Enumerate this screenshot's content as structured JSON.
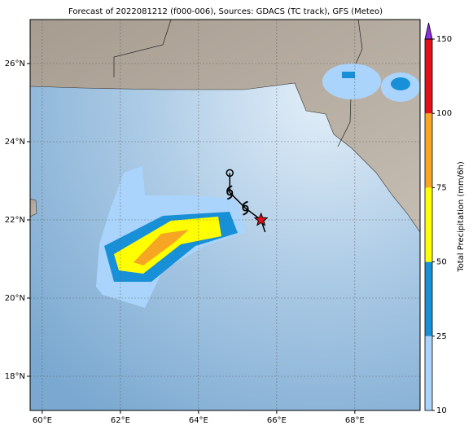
{
  "title": "Forecast of 2022081212 (f000-006), Sources: GDACS (TC track), GFS (Meteo)",
  "map": {
    "lonlim": [
      59.69,
      69.67
    ],
    "latlim": [
      17.125,
      27.125
    ],
    "lonticks": [
      {
        "value": 60,
        "label": "60°E"
      },
      {
        "value": 62,
        "label": "62°E"
      },
      {
        "value": 64,
        "label": "64°E"
      },
      {
        "value": 66,
        "label": "66°E"
      },
      {
        "value": 68,
        "label": "68°E"
      }
    ],
    "latticks": [
      {
        "value": 18,
        "label": "18°N"
      },
      {
        "value": 20,
        "label": "20°N"
      },
      {
        "value": 22,
        "label": "22°N"
      },
      {
        "value": 24,
        "label": "24°N"
      },
      {
        "value": 26,
        "label": "26°N"
      }
    ],
    "grid": true,
    "track": [
      {
        "lon": 64.8,
        "lat": 23.2
      },
      {
        "lon": 64.8,
        "lat": 22.7
      },
      {
        "lon": 65.2,
        "lat": 22.3
      },
      {
        "lon": 65.6,
        "lat": 22.0
      }
    ]
  },
  "colorbar": {
    "label": "Total Precipitation (mm/6h)",
    "ticks": [
      10,
      25,
      50,
      75,
      100,
      150
    ],
    "colors": [
      "#aad4fb",
      "#1890d8",
      "#ffff00",
      "#f6a623",
      "#e3101a"
    ],
    "over_color": "#8b2fd9"
  }
}
